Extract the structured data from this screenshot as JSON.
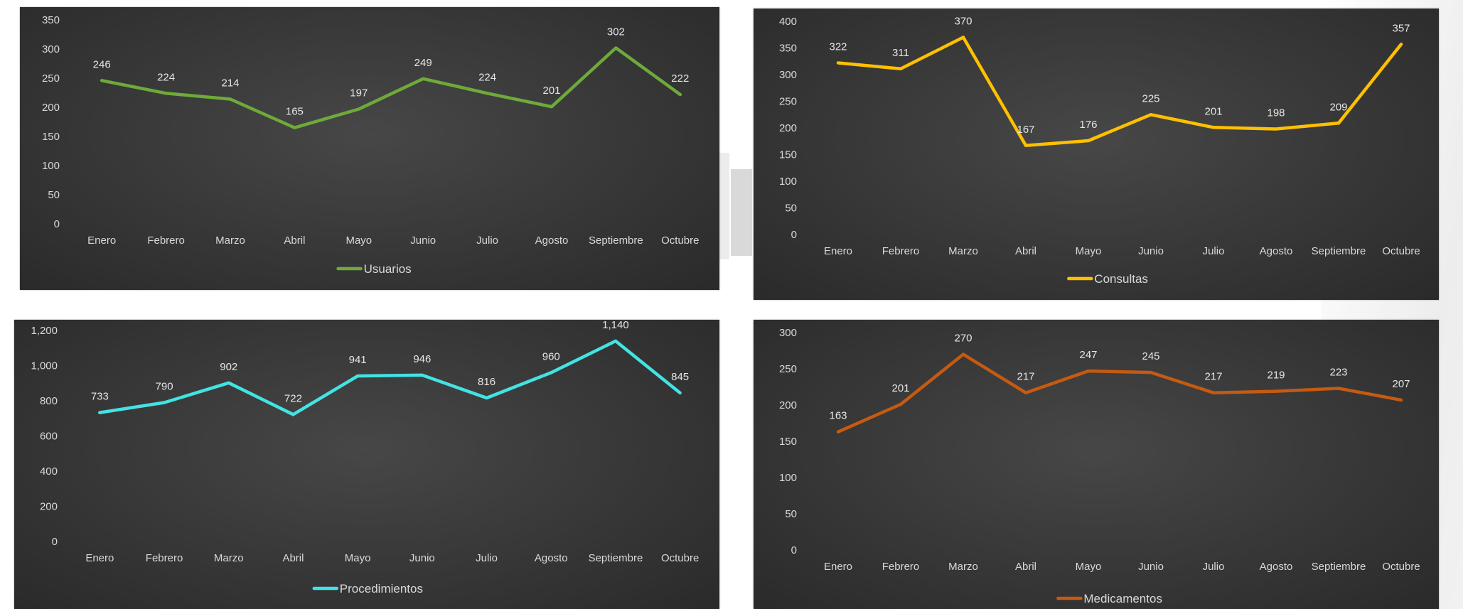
{
  "chart_data": [
    {
      "type": "line",
      "categories": [
        "Enero",
        "Febrero",
        "Marzo",
        "Abril",
        "Mayo",
        "Junio",
        "Julio",
        "Agosto",
        "Septiembre",
        "Octubre"
      ],
      "series": [
        {
          "name": "Usuarios",
          "values": [
            246,
            224,
            214,
            165,
            197,
            249,
            224,
            201,
            302,
            222
          ],
          "color": "#6eaa3a"
        }
      ],
      "y_ticks": [
        "0",
        "50",
        "100",
        "150",
        "200",
        "250",
        "300",
        "350"
      ],
      "ylim": [
        0,
        350
      ],
      "legend": "bottom"
    },
    {
      "type": "line",
      "categories": [
        "Enero",
        "Febrero",
        "Marzo",
        "Abril",
        "Mayo",
        "Junio",
        "Julio",
        "Agosto",
        "Septiembre",
        "Octubre"
      ],
      "series": [
        {
          "name": "Consultas",
          "values": [
            322,
            311,
            370,
            167,
            176,
            225,
            201,
            198,
            209,
            357
          ],
          "color": "#ffc000"
        }
      ],
      "y_ticks": [
        "0",
        "50",
        "100",
        "150",
        "200",
        "250",
        "300",
        "350",
        "400"
      ],
      "ylim": [
        0,
        400
      ],
      "legend": "bottom"
    },
    {
      "type": "line",
      "categories": [
        "Enero",
        "Febrero",
        "Marzo",
        "Abril",
        "Mayo",
        "Junio",
        "Julio",
        "Agosto",
        "Septiembre",
        "Octubre"
      ],
      "series": [
        {
          "name": "Procedimientos",
          "values": [
            733,
            790,
            902,
            722,
            941,
            946,
            816,
            960,
            1140,
            845
          ],
          "color": "#44e3e3"
        }
      ],
      "y_ticks": [
        "0",
        "200",
        "400",
        "600",
        "800",
        "1,000",
        "1,200"
      ],
      "ylim": [
        0,
        1200
      ],
      "value_labels": [
        "733",
        "790",
        "902",
        "722",
        "941",
        "946",
        "816",
        "960",
        "1,140",
        "845"
      ],
      "legend": "bottom"
    },
    {
      "type": "line",
      "categories": [
        "Enero",
        "Febrero",
        "Marzo",
        "Abril",
        "Mayo",
        "Junio",
        "Julio",
        "Agosto",
        "Septiembre",
        "Octubre"
      ],
      "series": [
        {
          "name": "Medicamentos",
          "values": [
            163,
            201,
            270,
            217,
            247,
            245,
            217,
            219,
            223,
            207
          ],
          "color": "#c55a11"
        }
      ],
      "y_ticks": [
        "0",
        "50",
        "100",
        "150",
        "200",
        "250",
        "300"
      ],
      "ylim": [
        0,
        300
      ],
      "legend": "bottom"
    }
  ]
}
